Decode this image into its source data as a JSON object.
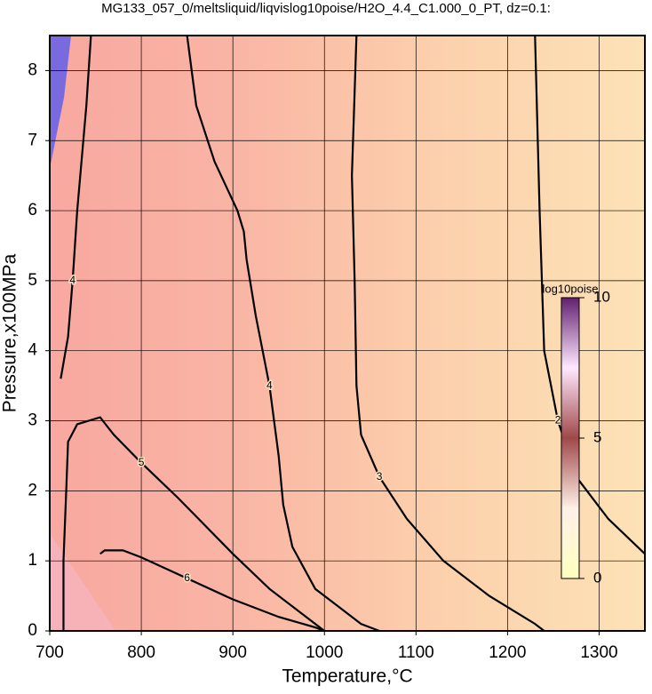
{
  "chart_data": {
    "type": "contour",
    "title": "MG133_057_0/meltsliquid/liqvislog10poise/H2O_4.4_C1.000_0_PT, dz=0.1:",
    "x_label": "Temperature,°C",
    "y_label": "Pressure,x100MPa",
    "xlim": [
      700,
      1350
    ],
    "ylim": [
      0,
      8.5
    ],
    "xticks": [
      700,
      800,
      900,
      1000,
      1100,
      1200,
      1300
    ],
    "yticks": [
      0,
      1,
      2,
      3,
      4,
      5,
      6,
      7,
      8
    ],
    "grid": true,
    "colorbar": {
      "label": "log10poise",
      "lim": [
        0,
        10
      ],
      "ticks": [
        0,
        5,
        10
      ]
    },
    "series": [
      {
        "level": 2,
        "color": "#000000",
        "x": [
          1230,
          1235,
          1240,
          1255,
          1275,
          1310,
          1350
        ],
        "y": [
          8.5,
          6,
          4,
          3,
          2.2,
          1.6,
          1.1
        ]
      },
      {
        "level": 3,
        "color": "#000000",
        "x": [
          1035,
          1030,
          1033,
          1035,
          1040,
          1060,
          1090,
          1130,
          1180,
          1230,
          1240
        ],
        "y": [
          8.5,
          6.5,
          5,
          3.5,
          2.8,
          2.2,
          1.6,
          1.0,
          0.5,
          0.1,
          0
        ]
      },
      {
        "level": 4,
        "color": "#000000",
        "x": [
          850,
          860,
          880,
          905,
          912,
          915,
          925,
          940,
          950,
          955,
          965,
          990,
          1040,
          1060
        ],
        "y": [
          8.5,
          7.5,
          6.7,
          6.0,
          5.7,
          5.3,
          4.5,
          3.5,
          2.5,
          1.8,
          1.2,
          0.6,
          0.1,
          0
        ]
      },
      {
        "level": 4,
        "color": "#000000",
        "x": [
          745,
          740,
          730,
          725,
          720,
          712
        ],
        "y": [
          8.5,
          7.5,
          6.0,
          5.0,
          4.2,
          3.6
        ]
      },
      {
        "level": 5,
        "color": "#000000",
        "x": [
          715,
          715,
          718,
          720,
          730,
          755,
          770,
          800,
          840,
          870,
          900,
          940,
          980,
          1000
        ],
        "y": [
          0,
          1,
          2,
          2.7,
          2.95,
          3.05,
          2.8,
          2.4,
          1.9,
          1.5,
          1.1,
          0.6,
          0.2,
          0
        ]
      },
      {
        "level": 6,
        "color": "#000000",
        "x": [
          755,
          760,
          780,
          800,
          850,
          900,
          950,
          990,
          1000
        ],
        "y": [
          1.1,
          1.15,
          1.15,
          1.05,
          0.75,
          0.45,
          0.2,
          0.05,
          0
        ]
      }
    ]
  }
}
